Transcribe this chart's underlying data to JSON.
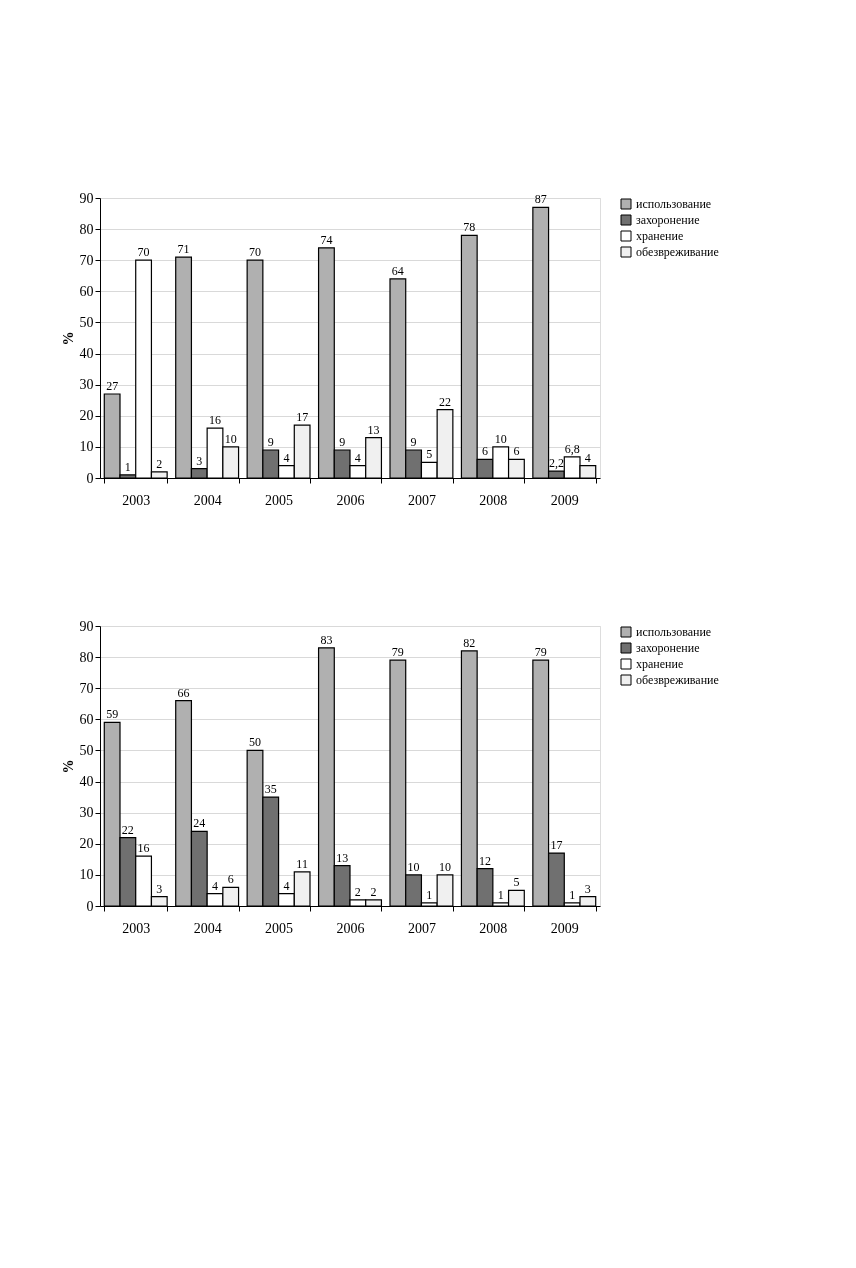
{
  "chart_data": [
    {
      "type": "bar",
      "ylabel": "%",
      "categories": [
        "2003",
        "2004",
        "2005",
        "2006",
        "2007",
        "2008",
        "2009"
      ],
      "ylim": [
        0,
        90
      ],
      "yticks": [
        0,
        10,
        20,
        30,
        40,
        50,
        60,
        70,
        80,
        90
      ],
      "grid": "y",
      "legend": "right",
      "series": [
        {
          "name": "использование",
          "color": "#b0b0b0",
          "values": [
            27,
            71,
            70,
            74,
            64,
            78,
            87
          ],
          "value_labels": [
            "27",
            "71",
            "70",
            "74",
            "64",
            "78",
            "87"
          ]
        },
        {
          "name": "захоронение",
          "color": "#707070",
          "values": [
            1,
            3,
            9,
            9,
            9,
            6,
            2.2
          ],
          "value_labels": [
            "1",
            "3",
            "9",
            "9",
            "9",
            "6",
            "2,2"
          ]
        },
        {
          "name": "хранение",
          "color": "#ffffff",
          "values": [
            70,
            16,
            4,
            4,
            5,
            10,
            6.8
          ],
          "value_labels": [
            "70",
            "16",
            "4",
            "4",
            "5",
            "10",
            "6,8"
          ]
        },
        {
          "name": "обезвреживание",
          "color": "#f0f0f0",
          "values": [
            2,
            10,
            17,
            13,
            22,
            6,
            4
          ],
          "value_labels": [
            "2",
            "10",
            "17",
            "13",
            "22",
            "6",
            "4"
          ]
        }
      ]
    },
    {
      "type": "bar",
      "ylabel": "%",
      "categories": [
        "2003",
        "2004",
        "2005",
        "2006",
        "2007",
        "2008",
        "2009"
      ],
      "ylim": [
        0,
        90
      ],
      "yticks": [
        0,
        10,
        20,
        30,
        40,
        50,
        60,
        70,
        80,
        90
      ],
      "grid": "y",
      "legend": "right",
      "data_labels": true,
      "series": [
        {
          "name": "использование",
          "color": "#b0b0b0",
          "values": [
            59,
            66,
            50,
            83,
            79,
            82,
            79
          ]
        },
        {
          "name": "захоронение",
          "color": "#707070",
          "values": [
            22,
            24,
            35,
            13,
            10,
            12,
            17
          ]
        },
        {
          "name": "хранение",
          "color": "#ffffff",
          "values": [
            16,
            4,
            4,
            2,
            1,
            1,
            1
          ]
        },
        {
          "name": "обезвреживание",
          "color": "#f0f0f0",
          "values": [
            3,
            6,
            11,
            2,
            10,
            5,
            3
          ]
        }
      ]
    }
  ]
}
